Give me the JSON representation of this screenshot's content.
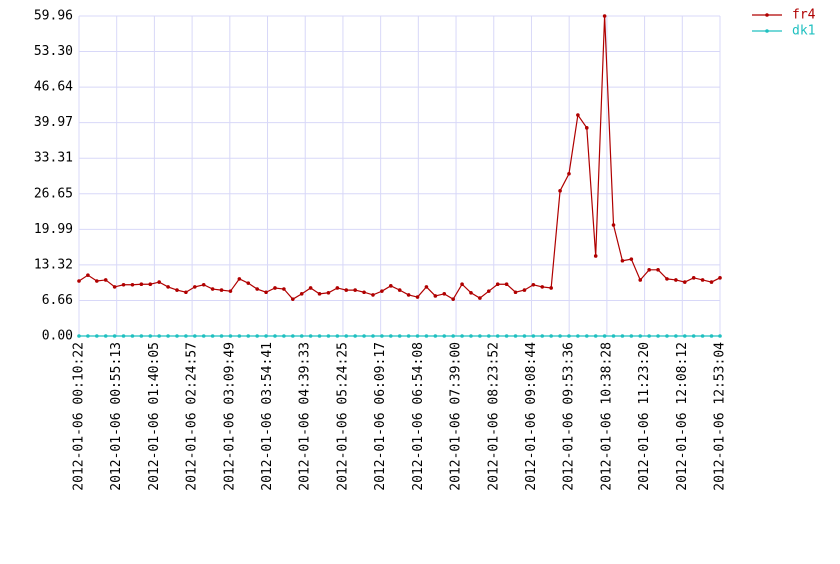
{
  "chart_data": {
    "type": "line",
    "x": [
      "2012-01-06 00:10:22",
      "2012-01-06 00:20:58",
      "2012-01-06 00:31:34",
      "2012-01-06 00:42:10",
      "2012-01-06 00:52:46",
      "2012-01-06 01:03:22",
      "2012-01-06 01:13:58",
      "2012-01-06 01:24:34",
      "2012-01-06 01:35:10",
      "2012-01-06 01:45:46",
      "2012-01-06 01:56:22",
      "2012-01-06 02:06:58",
      "2012-01-06 02:17:34",
      "2012-01-06 02:28:10",
      "2012-01-06 02:38:46",
      "2012-01-06 02:49:22",
      "2012-01-06 02:59:58",
      "2012-01-06 03:10:34",
      "2012-01-06 03:21:10",
      "2012-01-06 03:31:46",
      "2012-01-06 03:42:22",
      "2012-01-06 03:52:58",
      "2012-01-06 04:03:34",
      "2012-01-06 04:14:10",
      "2012-01-06 04:24:46",
      "2012-01-06 04:35:22",
      "2012-01-06 04:45:58",
      "2012-01-06 04:56:34",
      "2012-01-06 05:07:10",
      "2012-01-06 05:17:46",
      "2012-01-06 05:28:22",
      "2012-01-06 05:38:58",
      "2012-01-06 05:49:34",
      "2012-01-06 06:00:10",
      "2012-01-06 06:10:46",
      "2012-01-06 06:21:22",
      "2012-01-06 06:31:58",
      "2012-01-06 06:42:34",
      "2012-01-06 06:53:10",
      "2012-01-06 07:03:46",
      "2012-01-06 07:14:22",
      "2012-01-06 07:24:58",
      "2012-01-06 07:35:34",
      "2012-01-06 07:46:10",
      "2012-01-06 07:56:46",
      "2012-01-06 08:07:22",
      "2012-01-06 08:17:58",
      "2012-01-06 08:28:34",
      "2012-01-06 08:39:10",
      "2012-01-06 08:49:46",
      "2012-01-06 09:00:22",
      "2012-01-06 09:10:58",
      "2012-01-06 09:21:34",
      "2012-01-06 09:32:10",
      "2012-01-06 09:42:46",
      "2012-01-06 09:53:22",
      "2012-01-06 10:03:58",
      "2012-01-06 10:14:34",
      "2012-01-06 10:25:10",
      "2012-01-06 10:35:46",
      "2012-01-06 10:46:22",
      "2012-01-06 10:56:58",
      "2012-01-06 11:07:34",
      "2012-01-06 11:18:10",
      "2012-01-06 11:28:46",
      "2012-01-06 11:39:22",
      "2012-01-06 11:49:58",
      "2012-01-06 12:00:34",
      "2012-01-06 12:11:10",
      "2012-01-06 12:21:46",
      "2012-01-06 12:32:22",
      "2012-01-06 12:42:58",
      "2012-01-06 12:53:04"
    ],
    "series": [
      {
        "name": "fr4",
        "color": "#b00000",
        "values": [
          10.3,
          11.4,
          10.3,
          10.5,
          9.2,
          9.6,
          9.6,
          9.7,
          9.7,
          10.1,
          9.2,
          8.6,
          8.2,
          9.2,
          9.6,
          8.8,
          8.6,
          8.4,
          10.7,
          9.9,
          8.8,
          8.2,
          9.0,
          8.8,
          6.9,
          7.9,
          9.0,
          7.9,
          8.1,
          9.0,
          8.6,
          8.6,
          8.2,
          7.7,
          8.4,
          9.4,
          8.6,
          7.7,
          7.3,
          9.2,
          7.5,
          7.9,
          6.9,
          9.7,
          8.1,
          7.1,
          8.4,
          9.7,
          9.7,
          8.2,
          8.6,
          9.6,
          9.2,
          9.0,
          27.2,
          30.4,
          41.4,
          39.0,
          15.0,
          59.96,
          20.8,
          14.1,
          14.4,
          10.5,
          12.4,
          12.4,
          10.7,
          10.5,
          10.1,
          10.9,
          10.5,
          10.1,
          10.9
        ]
      },
      {
        "name": "dk1",
        "color": "#20c0c0",
        "values": [
          0,
          0,
          0,
          0,
          0,
          0,
          0,
          0,
          0,
          0,
          0,
          0,
          0,
          0,
          0,
          0,
          0,
          0,
          0,
          0,
          0,
          0,
          0,
          0,
          0,
          0,
          0,
          0,
          0,
          0,
          0,
          0,
          0,
          0,
          0,
          0,
          0,
          0,
          0,
          0,
          0,
          0,
          0,
          0,
          0,
          0,
          0,
          0,
          0,
          0,
          0,
          0,
          0,
          0,
          0,
          0,
          0,
          0,
          0,
          0,
          0,
          0,
          0,
          0,
          0,
          0,
          0,
          0,
          0,
          0,
          0,
          0,
          0
        ]
      }
    ],
    "xlim": [
      "2012-01-06 00:10:22",
      "2012-01-06 12:53:04"
    ],
    "xticks": [
      "2012-01-06 00:10:22",
      "2012-01-06 00:55:13",
      "2012-01-06 01:40:05",
      "2012-01-06 02:24:57",
      "2012-01-06 03:09:49",
      "2012-01-06 03:54:41",
      "2012-01-06 04:39:33",
      "2012-01-06 05:24:25",
      "2012-01-06 06:09:17",
      "2012-01-06 06:54:08",
      "2012-01-06 07:39:00",
      "2012-01-06 08:23:52",
      "2012-01-06 09:08:44",
      "2012-01-06 09:53:36",
      "2012-01-06 10:38:28",
      "2012-01-06 11:23:20",
      "2012-01-06 12:08:12",
      "2012-01-06 12:53:04"
    ],
    "ylim": [
      0,
      59.96
    ],
    "yticks": [
      {
        "value": 0,
        "label": "0.00"
      },
      6.66,
      13.32,
      19.99,
      26.65,
      33.31,
      39.97,
      46.64,
      {
        "value": 53.3,
        "label": "53.30"
      },
      59.96
    ],
    "grid": true,
    "legend": "top-right"
  }
}
